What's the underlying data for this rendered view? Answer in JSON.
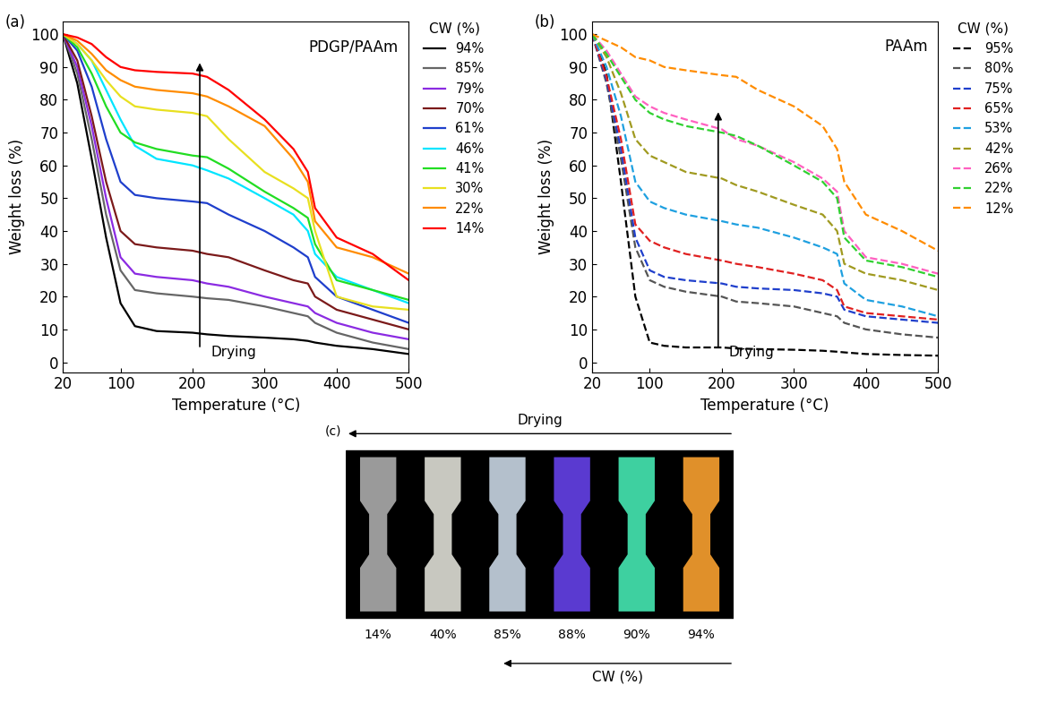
{
  "chart_data": [
    {
      "type": "line",
      "panel_label": "(a)",
      "subtitle": "PDGP/PAAm",
      "annotation": "Drying",
      "x_label": "Temperature (°C)",
      "y_label": "Weight loss (%)",
      "legend": "right",
      "legend_title": "CW (%)",
      "line_style": "solid",
      "xlim": [
        20,
        500
      ],
      "xticks": [
        20,
        100,
        200,
        300,
        400,
        500
      ],
      "ylim": [
        -3,
        104
      ],
      "yticks": [
        0,
        10,
        20,
        30,
        40,
        50,
        60,
        70,
        80,
        90,
        100
      ],
      "x": [
        20,
        40,
        60,
        80,
        100,
        120,
        150,
        200,
        220,
        250,
        300,
        340,
        360,
        370,
        400,
        450,
        500
      ],
      "series": [
        {
          "name": "94%",
          "color": "#000000",
          "values": [
            100,
            85,
            62,
            38,
            18,
            11,
            9.5,
            9,
            8.5,
            8,
            7.5,
            7,
            6.5,
            6,
            5,
            4,
            2.5
          ]
        },
        {
          "name": "85%",
          "color": "#666666",
          "values": [
            100,
            88,
            68,
            45,
            28,
            22,
            21,
            20,
            19.5,
            19,
            17,
            15,
            14,
            12,
            9,
            6,
            4
          ]
        },
        {
          "name": "79%",
          "color": "#8b2be2",
          "values": [
            100,
            90,
            72,
            50,
            32,
            27,
            26,
            25,
            24,
            23,
            20,
            18,
            17,
            15,
            12,
            9,
            7
          ]
        },
        {
          "name": "70%",
          "color": "#7b1a1a",
          "values": [
            100,
            92,
            75,
            55,
            40,
            36,
            35,
            34,
            33,
            32,
            28,
            25,
            24,
            20,
            16,
            13,
            10
          ]
        },
        {
          "name": "61%",
          "color": "#1f3fcc",
          "values": [
            100,
            95,
            84,
            68,
            55,
            51,
            50,
            49,
            48.5,
            45,
            40,
            35,
            32,
            26,
            20,
            16,
            12
          ]
        },
        {
          "name": "46%",
          "color": "#00e5ff",
          "values": [
            100,
            97,
            92,
            83,
            74,
            66,
            62,
            60,
            58.5,
            56,
            50,
            45,
            40,
            33,
            26,
            22,
            18
          ]
        },
        {
          "name": "41%",
          "color": "#22dd22",
          "values": [
            100,
            96,
            88,
            78,
            70,
            67,
            65,
            63,
            62.5,
            59,
            52,
            47,
            44,
            36,
            25,
            22,
            19
          ]
        },
        {
          "name": "30%",
          "color": "#e8e020",
          "values": [
            100,
            97,
            92,
            86,
            81,
            78,
            77,
            76,
            75,
            68,
            58,
            53,
            50,
            40,
            20,
            17,
            16
          ]
        },
        {
          "name": "22%",
          "color": "#ff8c00",
          "values": [
            100,
            98,
            94,
            89,
            86,
            84,
            83,
            82,
            81,
            78,
            72,
            62,
            55,
            43,
            35,
            32,
            27
          ]
        },
        {
          "name": "14%",
          "color": "#ff0000",
          "values": [
            100,
            99,
            97,
            93,
            90,
            89,
            88.5,
            88,
            87,
            83,
            74,
            65,
            58,
            47,
            38,
            33,
            25
          ]
        }
      ]
    },
    {
      "type": "line",
      "panel_label": "(b)",
      "subtitle": "PAAm",
      "annotation": "Drying",
      "x_label": "Temperature (°C)",
      "y_label": "Weight loss (%)",
      "legend": "right",
      "legend_title": "CW (%)",
      "line_style": "dashed",
      "xlim": [
        20,
        500
      ],
      "xticks": [
        20,
        100,
        200,
        300,
        400,
        500
      ],
      "ylim": [
        -3,
        104
      ],
      "yticks": [
        0,
        10,
        20,
        30,
        40,
        50,
        60,
        70,
        80,
        90,
        100
      ],
      "x": [
        20,
        40,
        60,
        80,
        100,
        120,
        150,
        200,
        220,
        250,
        300,
        340,
        360,
        370,
        400,
        450,
        500
      ],
      "series": [
        {
          "name": "95%",
          "color": "#000000",
          "values": [
            100,
            88,
            55,
            20,
            6,
            5,
            4.5,
            4.5,
            4.2,
            4,
            3.8,
            3.5,
            3.2,
            3,
            2.5,
            2.2,
            2
          ]
        },
        {
          "name": "80%",
          "color": "#555555",
          "values": [
            100,
            85,
            62,
            35,
            25,
            23,
            21.5,
            20,
            18.5,
            18,
            17,
            15,
            14,
            12,
            10,
            8.5,
            7.5
          ]
        },
        {
          "name": "75%",
          "color": "#1f3fcc",
          "values": [
            100,
            86,
            65,
            38,
            28,
            26,
            25,
            24,
            23,
            22.5,
            22,
            21,
            20,
            16,
            14,
            13,
            12
          ]
        },
        {
          "name": "65%",
          "color": "#e02020",
          "values": [
            100,
            87,
            68,
            42,
            37,
            35,
            33,
            31,
            30,
            29,
            27,
            25,
            22,
            17,
            15,
            14,
            13
          ]
        },
        {
          "name": "53%",
          "color": "#1ea0e0",
          "values": [
            100,
            90,
            75,
            55,
            49,
            47,
            45,
            43,
            42,
            41,
            38,
            35,
            33,
            24,
            19,
            17,
            14
          ]
        },
        {
          "name": "42%",
          "color": "#a09a20",
          "values": [
            100,
            93,
            82,
            68,
            63,
            61,
            58,
            56,
            54,
            52,
            48,
            45,
            40,
            30,
            27,
            25,
            22
          ]
        },
        {
          "name": "26%",
          "color": "#ff60c0",
          "values": [
            100,
            95,
            88,
            81,
            78,
            76,
            74,
            71,
            68,
            66,
            61,
            56,
            52,
            40,
            32,
            30,
            27
          ]
        },
        {
          "name": "22%",
          "color": "#30d030",
          "values": [
            100,
            94,
            87,
            80,
            76,
            74,
            72,
            70,
            69,
            66,
            60,
            55,
            50,
            38,
            31,
            29,
            26
          ]
        },
        {
          "name": "12%",
          "color": "#ff8c00",
          "values": [
            100,
            98,
            96,
            93,
            92,
            90,
            89,
            87.5,
            87,
            83,
            78,
            72,
            65,
            55,
            45,
            40,
            34
          ]
        }
      ]
    }
  ],
  "panel_c": {
    "panel_label": "(c)",
    "arrow_top": "Drying",
    "arrow_bottom": "CW (%)",
    "specimens": [
      {
        "label": "14%",
        "color": "#9a9a9a"
      },
      {
        "label": "40%",
        "color": "#c8c8c0"
      },
      {
        "label": "85%",
        "color": "#b4c0cc"
      },
      {
        "label": "88%",
        "color": "#5a3ad0"
      },
      {
        "label": "90%",
        "color": "#3ed0a0"
      },
      {
        "label": "94%",
        "color": "#e0902a"
      }
    ]
  }
}
